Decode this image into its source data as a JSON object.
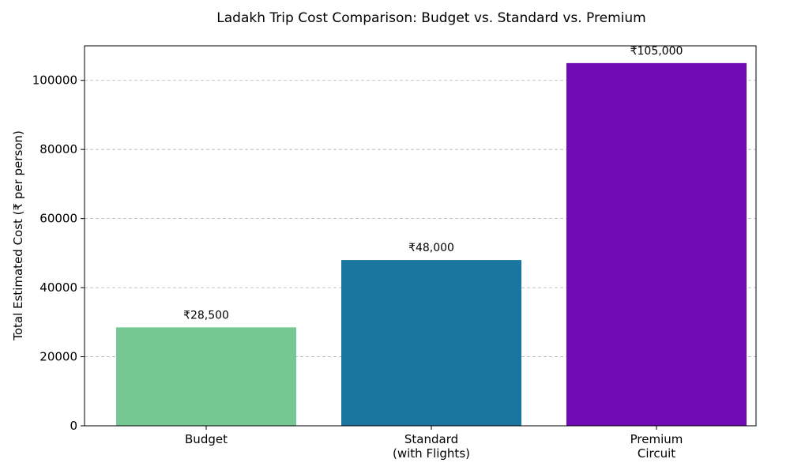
{
  "chart_data": {
    "type": "bar",
    "title": "Ladakh Trip Cost Comparison: Budget vs. Standard vs. Premium",
    "xlabel": "",
    "ylabel": "Total Estimated Cost (₹ per person)",
    "categories": [
      [
        "Budget"
      ],
      [
        "Standard",
        "(with Flights)"
      ],
      [
        "Premium",
        "Circuit"
      ]
    ],
    "values": [
      28500,
      48000,
      105000
    ],
    "data_labels": [
      "₹28,500",
      "₹48,000",
      "₹105,000"
    ],
    "colors": [
      "#76c893",
      "#1a759f",
      "#7209b7"
    ],
    "ylim": [
      0,
      110000
    ],
    "yticks": [
      0,
      20000,
      40000,
      60000,
      80000,
      100000
    ],
    "ytick_labels": [
      "0",
      "20000",
      "40000",
      "60000",
      "80000",
      "100000"
    ],
    "grid": "y-dashed",
    "legend": "none"
  }
}
